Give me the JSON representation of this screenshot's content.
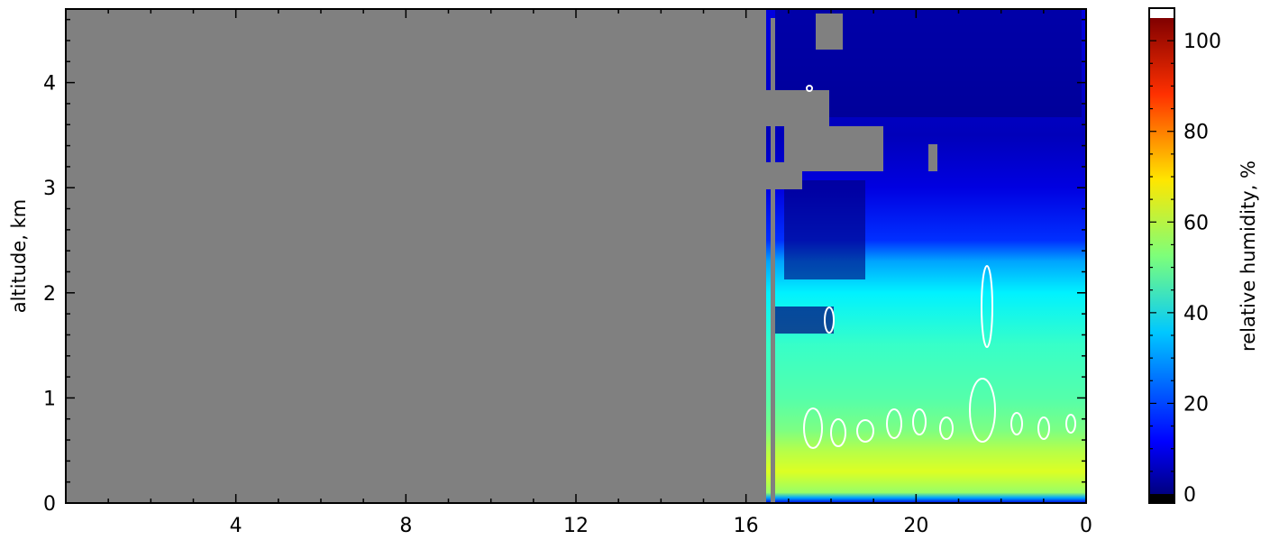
{
  "chart_data": {
    "type": "heatmap",
    "title": "",
    "xlabel": "",
    "ylabel": "altitude, km",
    "x_ticks": [
      "4",
      "8",
      "12",
      "16",
      "20",
      "0"
    ],
    "y_ticks": [
      "0",
      "1",
      "2",
      "3",
      "4"
    ],
    "ylim": [
      0,
      4.7
    ],
    "no_data_before_hour": 16.5,
    "colorbar": {
      "label": "relative humidity, %",
      "ticks": [
        "0",
        "20",
        "40",
        "60",
        "80",
        "100"
      ],
      "range": [
        0,
        105
      ],
      "colormap": "jet"
    },
    "rh_profile": {
      "altitude_km": [
        0.0,
        0.05,
        0.1,
        0.3,
        0.5,
        0.7,
        1.0,
        1.5,
        2.0,
        2.3,
        2.5,
        3.0,
        3.5,
        4.0,
        4.7
      ],
      "rh_percent": [
        10,
        30,
        55,
        62,
        58,
        52,
        48,
        45,
        38,
        30,
        18,
        10,
        6,
        8,
        10
      ]
    },
    "contour_color": "#ffffff",
    "missing_color": "#808080"
  }
}
